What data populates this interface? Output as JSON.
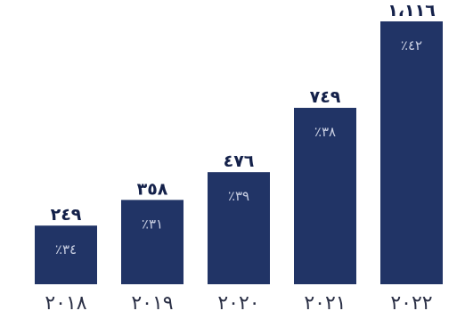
{
  "chart_data": {
    "type": "bar",
    "categories": [
      "٢٠١٨",
      "٢٠١٩",
      "٢٠٢٠",
      "٢٠٢١",
      "٢٠٢٢"
    ],
    "values": [
      249,
      358,
      476,
      749,
      1116
    ],
    "value_labels": [
      "٢٤٩",
      "٣٥٨",
      "٤٧٦",
      "٧٤٩",
      "١،١١٦"
    ],
    "percent_labels": [
      "٪٣٤",
      "٪٣١",
      "٪٣٩",
      "٪٣٨",
      "٪٤٢"
    ],
    "bar_color": "#213466",
    "title": "",
    "xlabel": "",
    "ylabel": "",
    "ylim": [
      0,
      1116
    ],
    "grid": false
  }
}
